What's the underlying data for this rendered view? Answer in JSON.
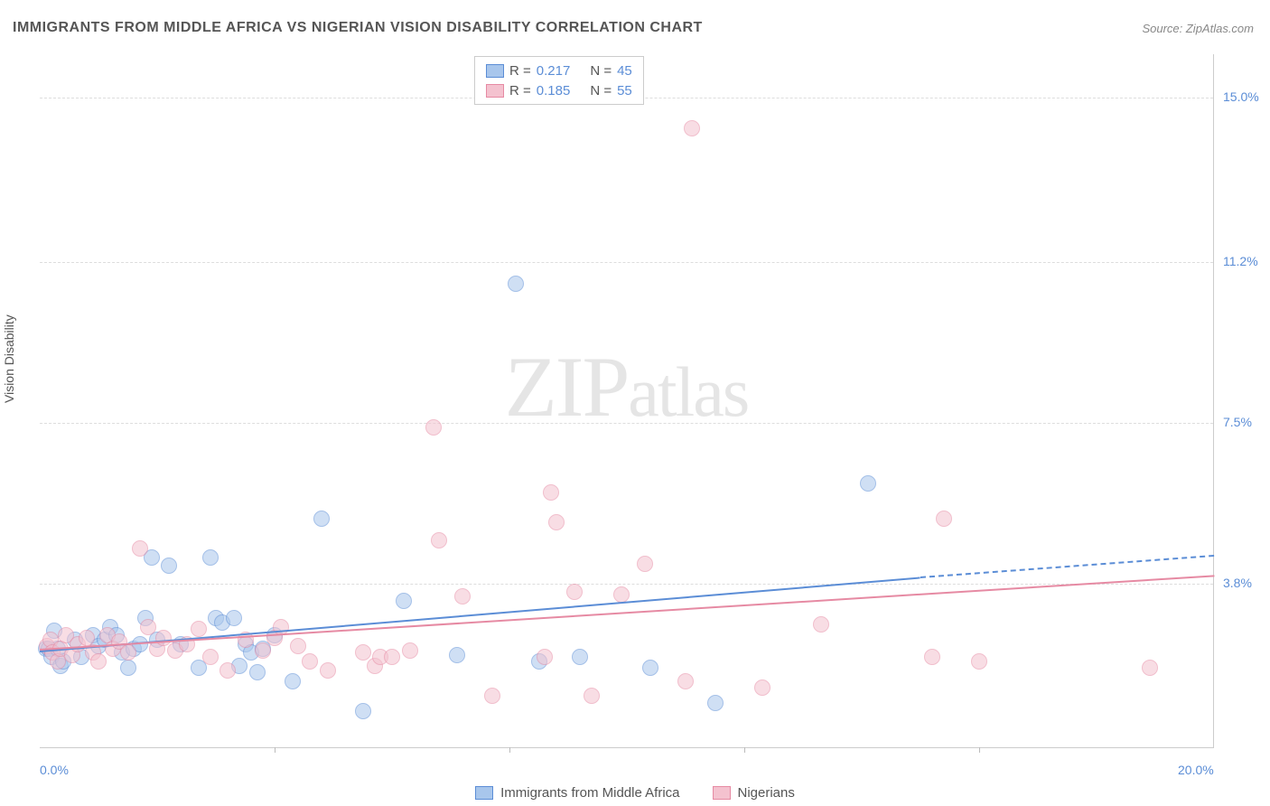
{
  "title": "IMMIGRANTS FROM MIDDLE AFRICA VS NIGERIAN VISION DISABILITY CORRELATION CHART",
  "source_prefix": "Source: ",
  "source": "ZipAtlas.com",
  "y_axis_label": "Vision Disability",
  "watermark_a": "ZIP",
  "watermark_b": "atlas",
  "chart": {
    "type": "scatter",
    "xlim": [
      0.0,
      20.0
    ],
    "ylim": [
      0.0,
      16.0
    ],
    "x_ticks": [
      0.0,
      20.0
    ],
    "x_tick_labels": [
      "0.0%",
      "20.0%"
    ],
    "x_minor_ticks": [
      4.0,
      8.0,
      12.0,
      16.0
    ],
    "y_gridlines": [
      3.8,
      7.5,
      11.2,
      15.0
    ],
    "y_tick_labels": [
      "3.8%",
      "7.5%",
      "11.2%",
      "15.0%"
    ],
    "background_color": "#ffffff",
    "grid_color": "#dddddd",
    "marker_radius": 9,
    "marker_opacity": 0.55,
    "line_width": 2.2,
    "series": [
      {
        "name": "Immigrants from Middle Africa",
        "fill": "#a8c6ec",
        "stroke": "#5b8dd6",
        "r_value": "0.217",
        "n_value": "45",
        "trend": {
          "x1": 0.0,
          "y1": 2.25,
          "x2": 15.0,
          "y2": 3.95,
          "dash_x": 20.0,
          "dash_y": 4.45
        },
        "points": [
          [
            0.1,
            2.3
          ],
          [
            0.15,
            2.3
          ],
          [
            0.2,
            2.1
          ],
          [
            0.25,
            2.7
          ],
          [
            0.3,
            2.3
          ],
          [
            0.35,
            1.9
          ],
          [
            0.4,
            2.0
          ],
          [
            0.6,
            2.5
          ],
          [
            0.7,
            2.1
          ],
          [
            0.9,
            2.6
          ],
          [
            1.0,
            2.35
          ],
          [
            1.1,
            2.5
          ],
          [
            1.2,
            2.8
          ],
          [
            1.3,
            2.6
          ],
          [
            1.4,
            2.2
          ],
          [
            1.5,
            1.85
          ],
          [
            1.6,
            2.3
          ],
          [
            1.7,
            2.4
          ],
          [
            1.8,
            3.0
          ],
          [
            1.9,
            4.4
          ],
          [
            2.0,
            2.5
          ],
          [
            2.2,
            4.2
          ],
          [
            2.4,
            2.4
          ],
          [
            2.7,
            1.85
          ],
          [
            2.9,
            4.4
          ],
          [
            3.0,
            3.0
          ],
          [
            3.1,
            2.9
          ],
          [
            3.3,
            3.0
          ],
          [
            3.4,
            1.9
          ],
          [
            3.5,
            2.4
          ],
          [
            3.6,
            2.2
          ],
          [
            3.8,
            2.3
          ],
          [
            4.0,
            2.6
          ],
          [
            4.3,
            1.55
          ],
          [
            4.8,
            5.3
          ],
          [
            5.5,
            0.85
          ],
          [
            6.2,
            3.4
          ],
          [
            7.1,
            2.15
          ],
          [
            8.1,
            10.7
          ],
          [
            8.5,
            2.0
          ],
          [
            9.2,
            2.1
          ],
          [
            10.4,
            1.85
          ],
          [
            11.5,
            1.05
          ],
          [
            14.1,
            6.1
          ],
          [
            3.7,
            1.75
          ]
        ]
      },
      {
        "name": "Nigerians",
        "fill": "#f4c2cf",
        "stroke": "#e68aa3",
        "r_value": "0.185",
        "n_value": "55",
        "trend": {
          "x1": 0.0,
          "y1": 2.3,
          "x2": 20.0,
          "y2": 4.0,
          "dash_x": 20.0,
          "dash_y": 4.0
        },
        "points": [
          [
            0.12,
            2.35
          ],
          [
            0.18,
            2.5
          ],
          [
            0.22,
            2.2
          ],
          [
            0.3,
            2.0
          ],
          [
            0.35,
            2.3
          ],
          [
            0.45,
            2.6
          ],
          [
            0.55,
            2.15
          ],
          [
            0.65,
            2.4
          ],
          [
            0.8,
            2.55
          ],
          [
            0.9,
            2.2
          ],
          [
            1.0,
            2.0
          ],
          [
            1.15,
            2.6
          ],
          [
            1.25,
            2.3
          ],
          [
            1.35,
            2.45
          ],
          [
            1.5,
            2.2
          ],
          [
            1.7,
            4.6
          ],
          [
            1.85,
            2.8
          ],
          [
            2.0,
            2.3
          ],
          [
            2.1,
            2.55
          ],
          [
            2.3,
            2.25
          ],
          [
            2.5,
            2.4
          ],
          [
            2.7,
            2.75
          ],
          [
            2.9,
            2.1
          ],
          [
            3.2,
            1.8
          ],
          [
            3.5,
            2.5
          ],
          [
            3.8,
            2.25
          ],
          [
            4.0,
            2.55
          ],
          [
            4.1,
            2.8
          ],
          [
            4.4,
            2.35
          ],
          [
            4.9,
            1.8
          ],
          [
            5.5,
            2.2
          ],
          [
            5.7,
            1.9
          ],
          [
            5.8,
            2.1
          ],
          [
            6.0,
            2.1
          ],
          [
            6.3,
            2.25
          ],
          [
            6.7,
            7.4
          ],
          [
            6.8,
            4.8
          ],
          [
            7.2,
            3.5
          ],
          [
            7.7,
            1.2
          ],
          [
            8.6,
            2.1
          ],
          [
            8.7,
            5.9
          ],
          [
            8.8,
            5.2
          ],
          [
            9.1,
            3.6
          ],
          [
            9.4,
            1.2
          ],
          [
            9.9,
            3.55
          ],
          [
            10.3,
            4.25
          ],
          [
            11.0,
            1.55
          ],
          [
            11.1,
            14.3
          ],
          [
            12.3,
            1.4
          ],
          [
            13.3,
            2.85
          ],
          [
            15.2,
            2.1
          ],
          [
            15.4,
            5.3
          ],
          [
            16.0,
            2.0
          ],
          [
            18.9,
            1.85
          ],
          [
            4.6,
            2.0
          ]
        ]
      }
    ]
  },
  "legend_labels": {
    "R": "R = ",
    "N": "N = "
  }
}
